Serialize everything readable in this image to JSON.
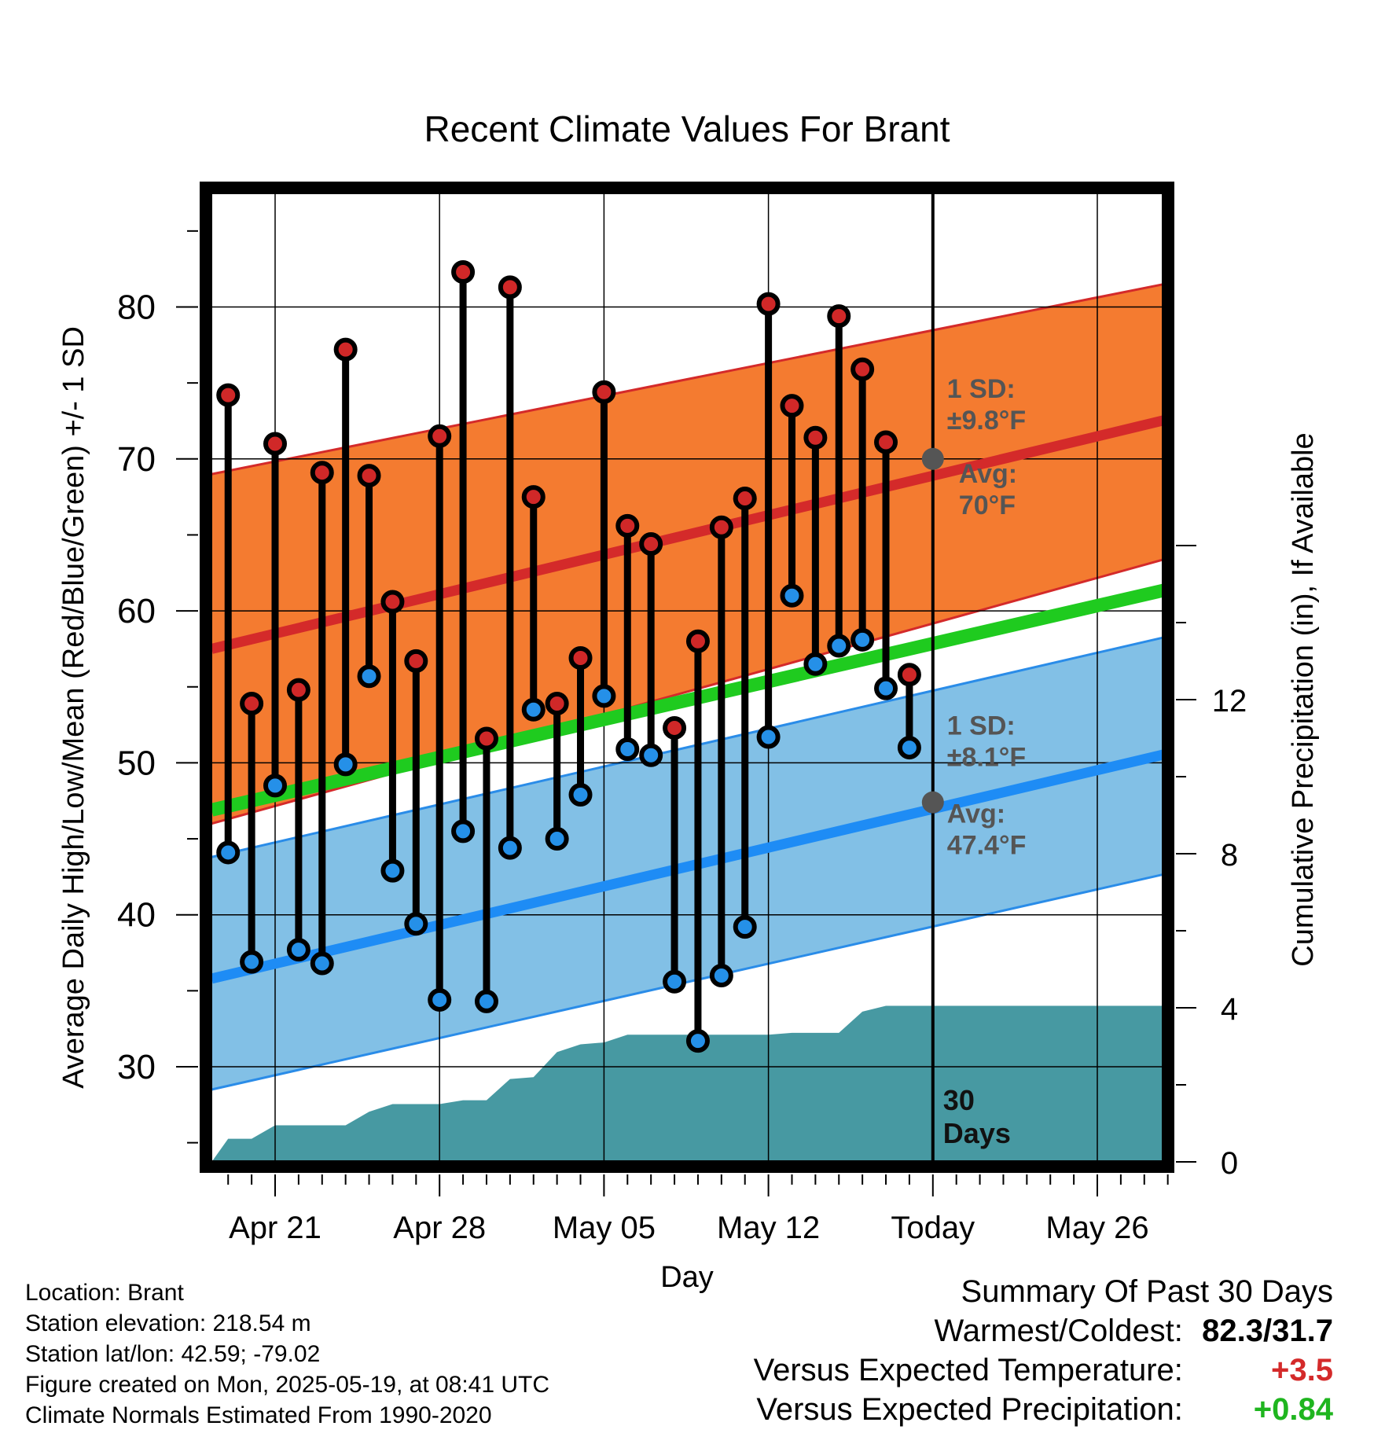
{
  "chart_data": {
    "type": "line",
    "title": "Recent Climate Values For Brant",
    "xlabel": "Day",
    "ylabel": "Average Daily High/Low/Mean (Red/Blue/Green) +/- 1 SD",
    "y2label": "Cumulative Precipitation (in), If Available",
    "xlim": [
      -2.7,
      38.8
    ],
    "ylim": [
      24,
      88
    ],
    "y2lim": [
      0,
      17.8
    ],
    "yticks": [
      30,
      40,
      50,
      60,
      70,
      80
    ],
    "y2ticks": [
      0,
      4,
      8,
      12
    ],
    "xticks": [
      {
        "day": 0,
        "label": "Apr 21"
      },
      {
        "day": 7,
        "label": "Apr 28"
      },
      {
        "day": 14,
        "label": "May 05"
      },
      {
        "day": 21,
        "label": "May 12"
      },
      {
        "day": 28,
        "label": "Today"
      },
      {
        "day": 35,
        "label": "May 26"
      }
    ],
    "today_day": 28,
    "days_label": "30 Days",
    "grid": true,
    "colors": {
      "high_band": "#F47B30",
      "high_edge": "#D42A2A",
      "high_avg": "#D42A2A",
      "low_band": "#82C0E6",
      "low_edge": "#2A8CE8",
      "low_avg": "#1E8CF5",
      "mean": "#1FCB1F",
      "precip": "#4799A2",
      "high_dot": "#D02828",
      "low_dot": "#2590E8",
      "marker": "#555555"
    },
    "normals": {
      "days": [
        -2.7,
        38.8
      ],
      "high_avg": [
        57.5,
        72.9
      ],
      "high_sd_upper": [
        69.0,
        81.8
      ],
      "high_sd_lower": [
        46.0,
        63.8
      ],
      "low_avg": [
        35.8,
        50.9
      ],
      "low_sd_upper": [
        43.8,
        58.6
      ],
      "low_sd_lower": [
        28.5,
        43.0
      ],
      "mean": [
        46.9,
        61.7
      ]
    },
    "high_annotation": {
      "sd": "1 SD:",
      "sd_value": "±9.8°F",
      "avg": "Avg:",
      "avg_value": "70°F",
      "today_value": 70.0
    },
    "low_annotation": {
      "sd": "1 SD:",
      "sd_value": "±8.1°F",
      "avg": "Avg:",
      "avg_value": "47.4°F",
      "today_value": 47.4
    },
    "daily": {
      "days": [
        -2,
        -1,
        0,
        1,
        2,
        3,
        4,
        5,
        6,
        7,
        8,
        9,
        10,
        11,
        12,
        13,
        14,
        15,
        16,
        17,
        18,
        19,
        20,
        21,
        22,
        23,
        24,
        25,
        26,
        27
      ],
      "high": [
        74.2,
        53.9,
        71.0,
        54.8,
        69.1,
        77.2,
        68.9,
        60.6,
        56.7,
        71.5,
        82.3,
        51.6,
        81.3,
        67.5,
        53.9,
        56.9,
        74.4,
        65.6,
        64.4,
        52.3,
        58.0,
        65.5,
        67.4,
        80.2,
        73.5,
        71.4,
        79.4,
        75.9,
        71.1,
        55.8
      ],
      "low": [
        44.1,
        36.9,
        48.5,
        37.7,
        36.8,
        49.9,
        55.7,
        42.9,
        39.4,
        34.4,
        45.5,
        34.3,
        44.4,
        53.5,
        45.0,
        47.9,
        54.4,
        50.9,
        50.5,
        35.6,
        31.7,
        36.0,
        39.2,
        51.7,
        61.0,
        56.5,
        57.7,
        58.1,
        54.9,
        51.0
      ]
    },
    "precip_cumulative": {
      "days": [
        -2.7,
        -2.0,
        -1.0,
        0.0,
        1.0,
        2.0,
        3.0,
        4.0,
        5.0,
        6.0,
        7.0,
        8.0,
        9.0,
        10.0,
        11.0,
        12.0,
        13.0,
        14.0,
        15.0,
        16.0,
        17.0,
        18.0,
        19.0,
        20.0,
        21.0,
        22.0,
        23.0,
        24.0,
        25.0,
        26.0,
        27.0,
        28.0,
        38.8
      ],
      "values": [
        0.0,
        0.6,
        0.6,
        0.95,
        0.95,
        0.95,
        0.95,
        1.3,
        1.5,
        1.5,
        1.5,
        1.6,
        1.6,
        2.15,
        2.2,
        2.85,
        3.05,
        3.1,
        3.3,
        3.3,
        3.3,
        3.3,
        3.3,
        3.3,
        3.3,
        3.35,
        3.35,
        3.35,
        3.9,
        4.05,
        4.05,
        4.05,
        4.05
      ]
    }
  },
  "info": {
    "location": "Location: Brant",
    "elevation": "Station elevation: 218.54 m",
    "latlon": "Station lat/lon: 42.59; -79.02",
    "created": "Figure created on Mon, 2025-05-19, at 08:41 UTC",
    "normals": "Climate Normals Estimated From 1990-2020"
  },
  "summary": {
    "title": "Summary Of Past 30 Days",
    "warm_cold_label": "Warmest/Coldest:",
    "warm_cold_value": "82.3/31.7",
    "temp_label": "Versus Expected Temperature:",
    "temp_value": "+3.5",
    "temp_color": "#D42A2A",
    "precip_label": "Versus Expected Precipitation:",
    "precip_value": "+0.84",
    "precip_color": "#1FB51F"
  }
}
